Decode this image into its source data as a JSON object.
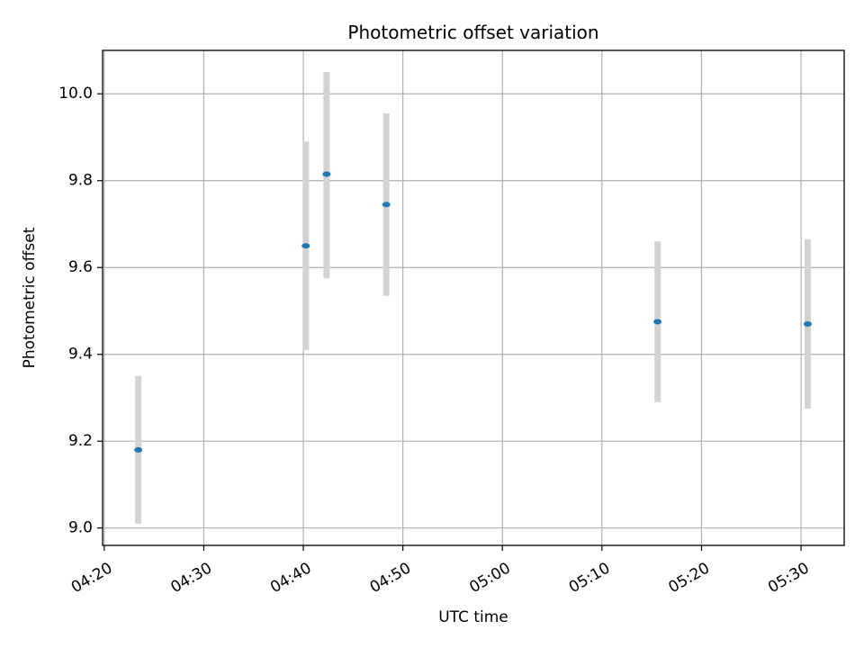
{
  "chart_data": {
    "type": "scatter",
    "title": "Photometric offset variation",
    "xlabel": "UTC time",
    "ylabel": "Photometric offset",
    "grid": true,
    "x_tick_labels": [
      "04:20",
      "04:30",
      "04:40",
      "04:50",
      "05:00",
      "05:10",
      "05:20",
      "05:30"
    ],
    "x_ticks": [
      "04:20",
      "04:30",
      "04:40",
      "04:50",
      "05:00",
      "05:10",
      "05:20",
      "05:30"
    ],
    "y_tick_labels": [
      "9.0",
      "9.2",
      "9.4",
      "9.6",
      "9.8",
      "10.0"
    ],
    "y_ticks": [
      9.0,
      9.2,
      9.4,
      9.6,
      9.8,
      10.0
    ],
    "xlim": [
      "04:19:50",
      "05:34:20"
    ],
    "ylim": [
      8.96,
      10.1
    ],
    "points": [
      {
        "x": "04:23:25",
        "y": 9.18,
        "y_low": 9.01,
        "y_high": 9.35
      },
      {
        "x": "04:40:15",
        "y": 9.65,
        "y_low": 9.41,
        "y_high": 9.89
      },
      {
        "x": "04:42:20",
        "y": 9.815,
        "y_low": 9.575,
        "y_high": 10.05
      },
      {
        "x": "04:48:20",
        "y": 9.745,
        "y_low": 9.535,
        "y_high": 9.955
      },
      {
        "x": "05:15:35",
        "y": 9.475,
        "y_low": 9.29,
        "y_high": 9.66
      },
      {
        "x": "05:30:40",
        "y": 9.47,
        "y_low": 9.275,
        "y_high": 9.665
      }
    ],
    "colors": {
      "marker": "#1f77b4",
      "errorbar": "#d3d3d3",
      "grid": "#b0b0b0"
    }
  }
}
